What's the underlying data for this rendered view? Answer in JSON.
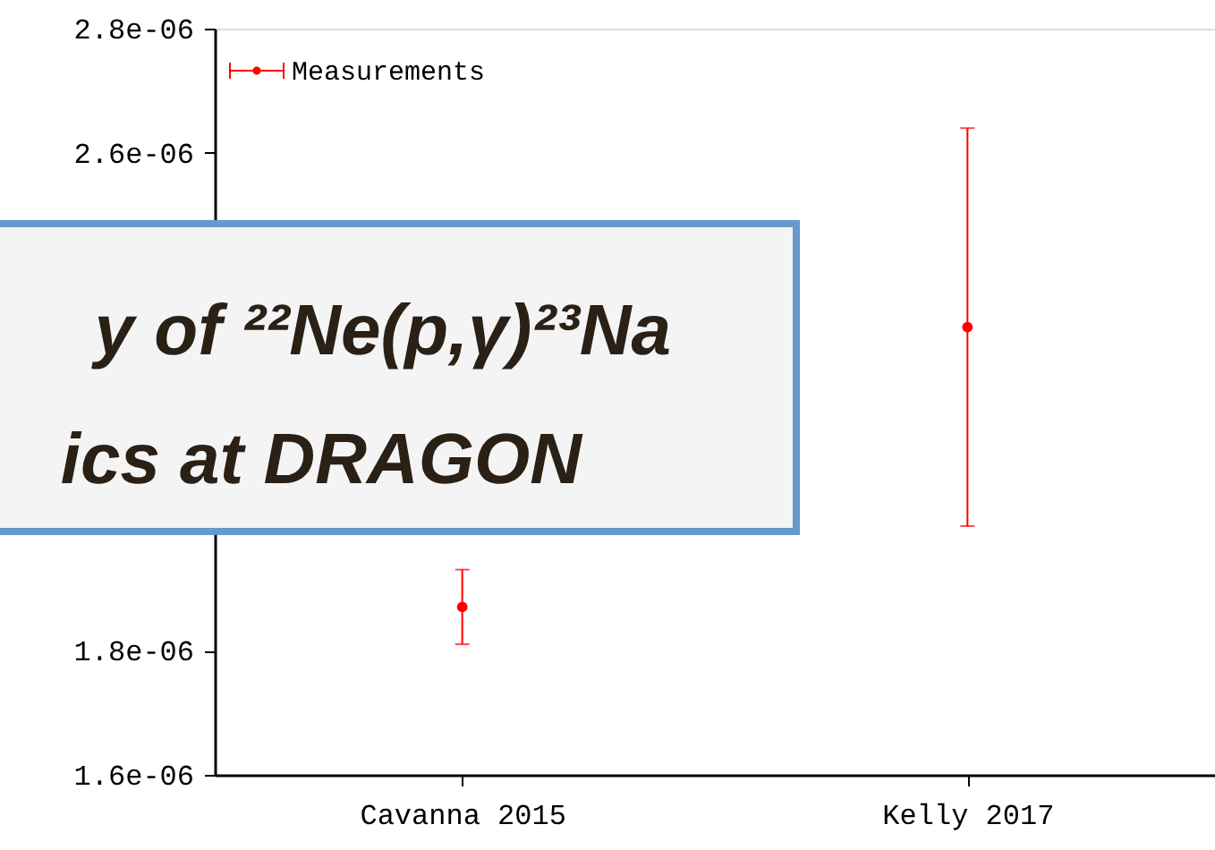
{
  "chart_data": {
    "type": "scatter",
    "categories": [
      "Cavanna 2015",
      "Kelly 2017"
    ],
    "series": [
      {
        "name": "Measurements",
        "color": "#ff0000",
        "values": [
          1.87e-06,
          2.32e-06
        ],
        "errors": [
          [
            1.81e-06,
            1.93e-06
          ],
          [
            2e-06,
            2.64e-06
          ]
        ]
      }
    ],
    "ylim": [
      1.6e-06,
      2.8e-06
    ],
    "yticks": [
      {
        "value": 1.6e-06,
        "label": "1.6e-06"
      },
      {
        "value": 1.8e-06,
        "label": "1.8e-06"
      },
      {
        "value": 2e-06,
        "label": null
      },
      {
        "value": 2.2e-06,
        "label": null
      },
      {
        "value": 2.4e-06,
        "label": null
      },
      {
        "value": 2.6e-06,
        "label": "2.6e-06"
      },
      {
        "value": 2.8e-06,
        "label": "2.8e-06"
      }
    ],
    "marker": "circle",
    "grid": false,
    "legend": "top left",
    "annotations": [
      "y of ²²Ne(p,γ)²³Na",
      "ics at DRAGON"
    ]
  }
}
